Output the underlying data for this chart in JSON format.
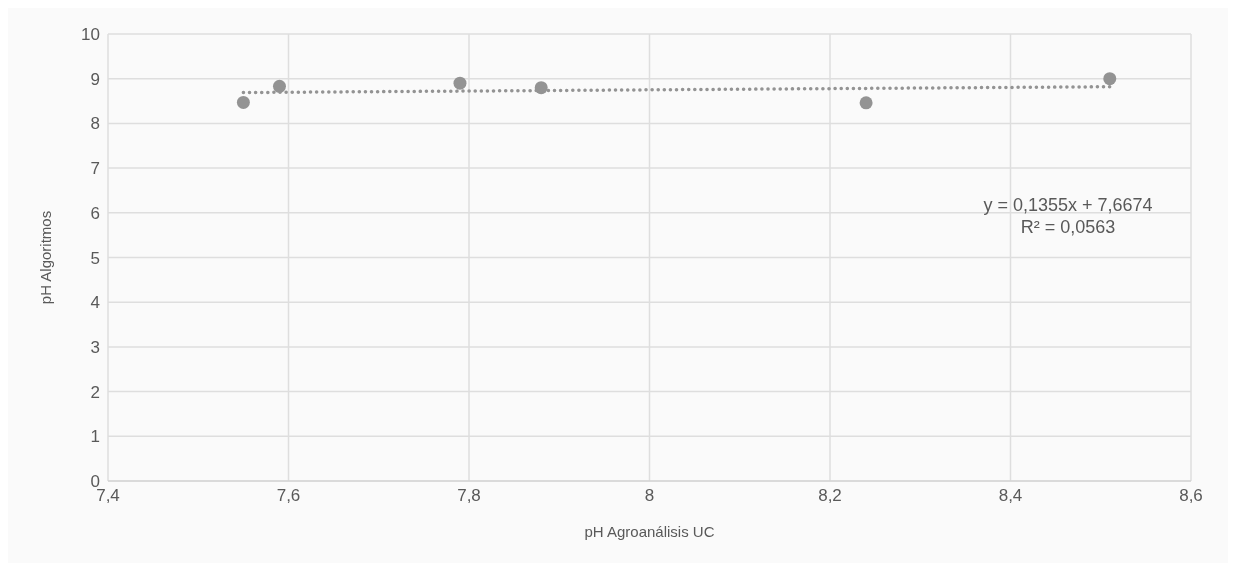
{
  "chart_data": {
    "type": "scatter",
    "xlabel": "pH Agroanálisis UC",
    "ylabel": "pH Algoritmos",
    "series": [
      {
        "color": "#939393",
        "x": [
          7.55,
          7.59,
          7.79,
          7.88,
          8.24,
          8.51
        ],
        "values": [
          8.47,
          8.83,
          8.9,
          8.8,
          8.46,
          9.0
        ]
      },
      {
        "type": "line",
        "color": "#939393",
        "line_style": "dotted",
        "marker": "none",
        "x": [
          7.55,
          8.51
        ],
        "values": [
          8.69,
          8.82
        ]
      }
    ],
    "annotations": [
      "y = 0,1355x + 7,6674",
      "R² = 0,0563"
    ],
    "xlim": [
      7.4,
      8.6
    ],
    "xticks": [
      {
        "value": 7.4,
        "label": "7,4"
      },
      {
        "value": 7.6,
        "label": "7,6"
      },
      {
        "value": 7.8,
        "label": "7,8"
      },
      8,
      {
        "value": 8.2,
        "label": "8,2"
      },
      {
        "value": 8.4,
        "label": "8,4"
      },
      {
        "value": 8.6,
        "label": "8,6"
      }
    ],
    "ylim": [
      0,
      10
    ],
    "yticks": [
      0,
      1,
      2,
      3,
      4,
      5,
      6,
      7,
      8,
      9,
      10
    ],
    "grid": true,
    "marker": "circle"
  }
}
